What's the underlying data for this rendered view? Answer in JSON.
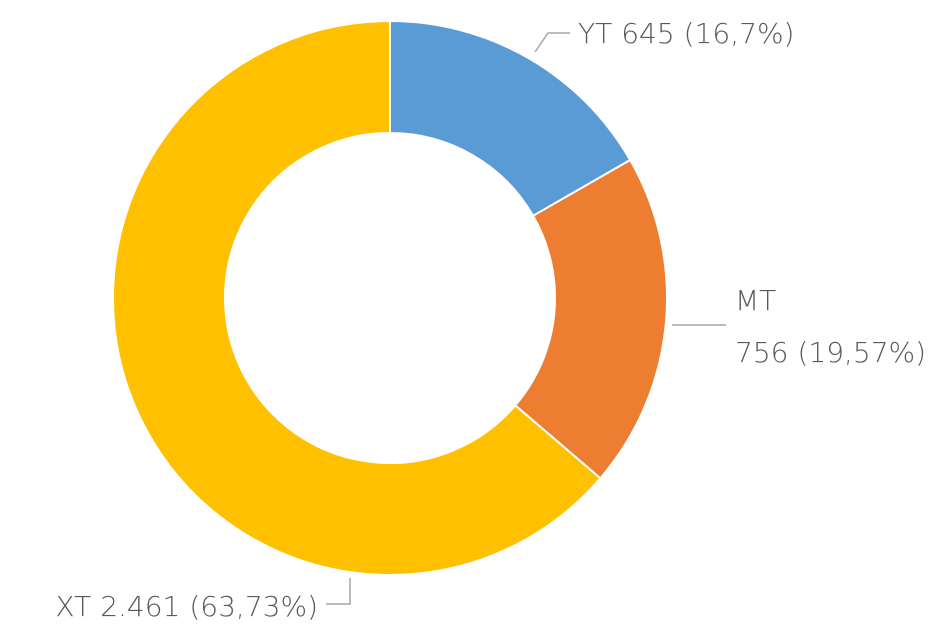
{
  "chart_data": {
    "type": "donut",
    "categories": [
      "YT",
      "MT",
      "XT"
    ],
    "values": [
      645,
      756,
      2461
    ],
    "value_labels": [
      "645",
      "756",
      "2.461"
    ],
    "percent_labels": [
      "(16,7%)",
      "(19,57%)",
      "(63,73%)"
    ],
    "colors": [
      "#5b9bd5",
      "#ed7d31",
      "#ffc000"
    ]
  }
}
